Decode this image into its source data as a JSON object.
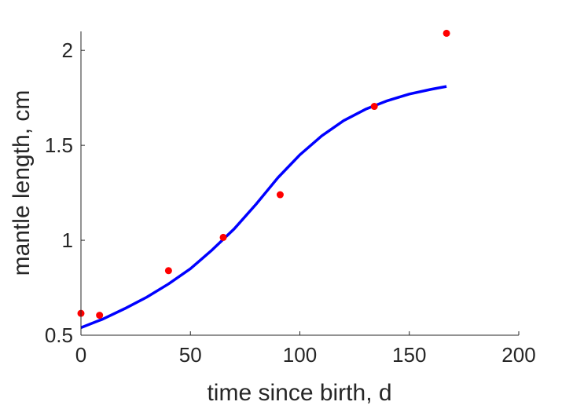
{
  "chart_data": {
    "type": "scatter",
    "xlabel": "time since birth, d",
    "ylabel": "mantle length, cm",
    "xlim": [
      0,
      200
    ],
    "ylim": [
      0.5,
      2.1
    ],
    "xticks": [
      0,
      50,
      100,
      150,
      200
    ],
    "xtick_labels": [
      "0",
      "50",
      "100",
      "150",
      "200"
    ],
    "yticks": [
      0.5,
      1,
      1.5,
      2
    ],
    "ytick_labels": [
      "0.5",
      "1",
      "1.5",
      "2"
    ],
    "grid": false,
    "series": [
      {
        "type": "scatter",
        "color": "#ff0000",
        "x": [
          0,
          8.5,
          40,
          65,
          91,
          134,
          167
        ],
        "y": [
          0.615,
          0.605,
          0.84,
          1.015,
          1.24,
          1.705,
          2.09
        ]
      },
      {
        "type": "line",
        "color": "#0000ff",
        "x": [
          0,
          10,
          20,
          30,
          40,
          50,
          60,
          70,
          80,
          85,
          90,
          95,
          100,
          110,
          120,
          130,
          140,
          150,
          160,
          167
        ],
        "y": [
          0.54,
          0.585,
          0.64,
          0.7,
          0.77,
          0.85,
          0.95,
          1.06,
          1.19,
          1.26,
          1.33,
          1.39,
          1.45,
          1.55,
          1.63,
          1.69,
          1.735,
          1.77,
          1.795,
          1.81
        ]
      }
    ]
  }
}
